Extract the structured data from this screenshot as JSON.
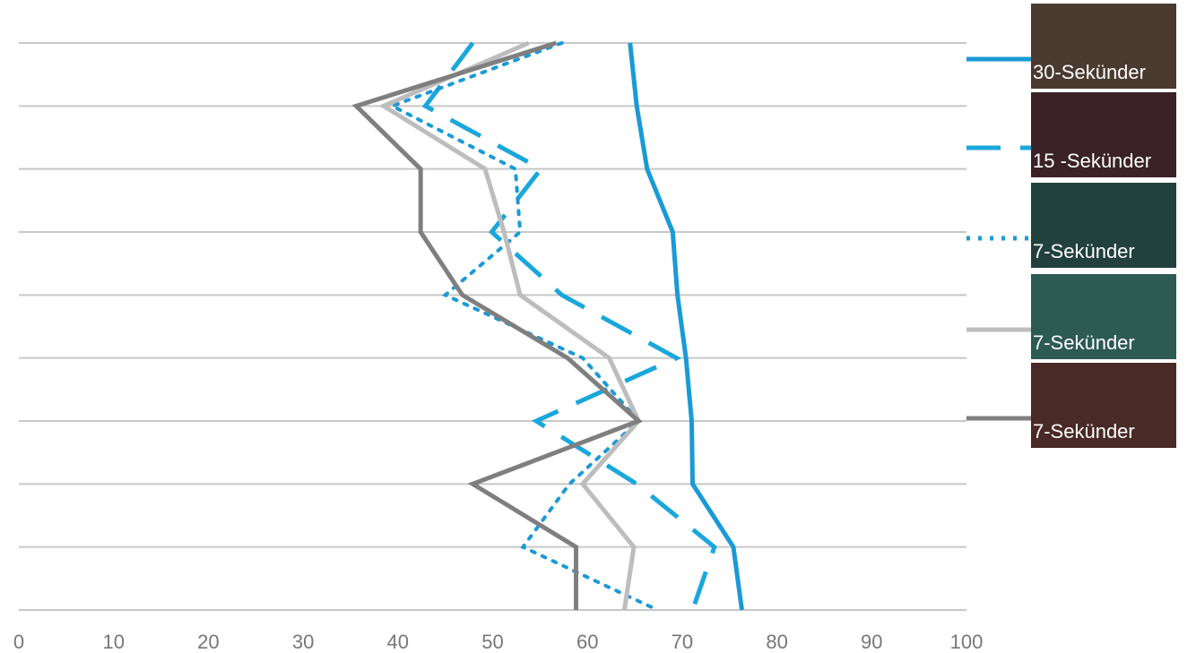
{
  "chart_data": {
    "type": "line",
    "orientation": "horizontal",
    "categories": [
      null,
      null,
      null,
      null,
      null,
      null,
      null,
      null,
      null,
      null
    ],
    "xlim": [
      0,
      100
    ],
    "xticks": [
      0,
      10,
      20,
      30,
      40,
      50,
      60,
      70,
      80,
      90,
      100
    ],
    "grid": true,
    "legend": "right",
    "series": [
      {
        "name": "30-Sekünder",
        "color": "#1a9ad6",
        "line_style": "solid",
        "values": [
          64.5,
          65.2,
          66.3,
          69,
          69.5,
          70.4,
          71,
          71.1,
          75.4,
          76.3
        ]
      },
      {
        "name": "15 -Sekünder",
        "color": "#1aa7dc",
        "line_style": "dashed",
        "values": [
          47.9,
          42.9,
          55.1,
          49.9,
          57.3,
          69.4,
          54.6,
          65.2,
          73.4,
          71.1
        ]
      },
      {
        "name": "7-Sekünder",
        "color": "#1a9ad6",
        "line_style": "dotted",
        "values": [
          57.3,
          39.4,
          52.4,
          52.9,
          45,
          59.5,
          65.4,
          58.1,
          53.2,
          67.4
        ]
      },
      {
        "name": "7-Sekünder",
        "color": "#bdbdbd",
        "line_style": "solid",
        "values": [
          53.8,
          38.5,
          49.2,
          51.2,
          52.9,
          62.3,
          65.4,
          59.5,
          64.9,
          63.9
        ]
      },
      {
        "name": "7-Sekünder",
        "color": "#7f7f7f",
        "line_style": "solid",
        "values": [
          56.7,
          35.6,
          42.4,
          42.4,
          46.8,
          57.9,
          65.4,
          47.9,
          58.8,
          58.8
        ]
      }
    ]
  }
}
